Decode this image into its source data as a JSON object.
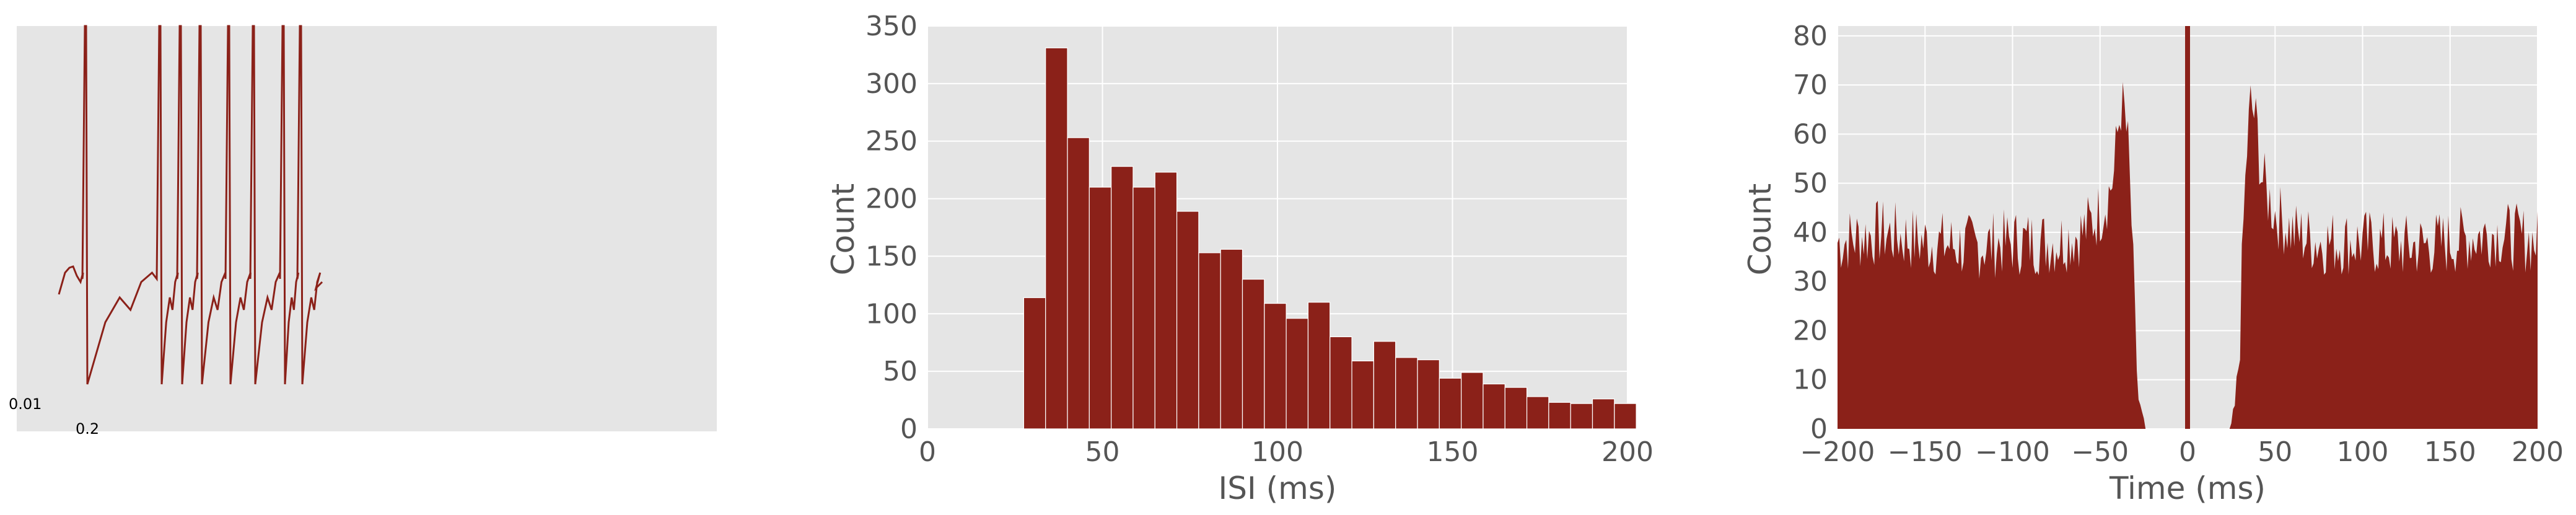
{
  "colors": {
    "bar": "#8B2119",
    "panel_bg": "#E5E5E5",
    "grid": "#FFFFFF",
    "text": "#555555"
  },
  "chart_data": [
    {
      "type": "line",
      "description_free": true,
      "scale_bar": {
        "y_label": "0.01",
        "x_label": "0.2"
      },
      "grid": false,
      "spike_count": 9
    },
    {
      "type": "bar",
      "xlabel": "ISI (ms)",
      "ylabel": "Count",
      "xlim": [
        0,
        200
      ],
      "ylim": [
        0,
        350
      ],
      "x_ticks": [
        "0",
        "50",
        "100",
        "150",
        "200"
      ],
      "y_ticks": [
        "0",
        "50",
        "100",
        "150",
        "200",
        "250",
        "300",
        "350"
      ],
      "bin_width": 6.25,
      "bin_starts": [
        27.5,
        33.75,
        40,
        46.25,
        52.5,
        58.75,
        65,
        71.25,
        77.5,
        83.75,
        90,
        96.25,
        102.5,
        108.75,
        115,
        121.25,
        127.5,
        133.75,
        140,
        146.25,
        152.5,
        158.75,
        165,
        171.25,
        177.5,
        183.75,
        190,
        196.25
      ],
      "values": [
        114,
        331,
        253,
        210,
        228,
        210,
        223,
        189,
        153,
        156,
        130,
        109,
        96,
        110,
        80,
        59,
        76,
        62,
        60,
        44,
        49,
        39,
        36,
        28,
        23,
        22,
        26,
        22
      ],
      "grid": true
    },
    {
      "type": "area",
      "xlabel": "Time (ms)",
      "ylabel": "Count",
      "xlim": [
        -200,
        200
      ],
      "ylim": [
        0,
        82
      ],
      "x_ticks": [
        "−200",
        "−150",
        "−100",
        "−50",
        "0",
        "50",
        "100",
        "150",
        "200"
      ],
      "y_ticks": [
        "0",
        "10",
        "20",
        "30",
        "40",
        "50",
        "60",
        "70",
        "80"
      ],
      "outline_x": [
        -200,
        -175,
        -150,
        -125,
        -100,
        -75,
        -60,
        -50,
        -45,
        -42,
        -40,
        -38,
        -36,
        -34,
        -32,
        -30,
        -28,
        -25,
        -22,
        22,
        25,
        28,
        30,
        32,
        34,
        36,
        38,
        40,
        42,
        45,
        50,
        60,
        75,
        100,
        125,
        150,
        175,
        200
      ],
      "outline_y": [
        38,
        40,
        38,
        37,
        38,
        38,
        40,
        44,
        48,
        52,
        60,
        66,
        64,
        57,
        42,
        20,
        6,
        1,
        0,
        0,
        1,
        6,
        20,
        42,
        57,
        66,
        64,
        60,
        52,
        48,
        44,
        40,
        38,
        38,
        37,
        38,
        40,
        38
      ],
      "center_bar": {
        "x": 0,
        "value": 82
      },
      "grid": true
    }
  ]
}
